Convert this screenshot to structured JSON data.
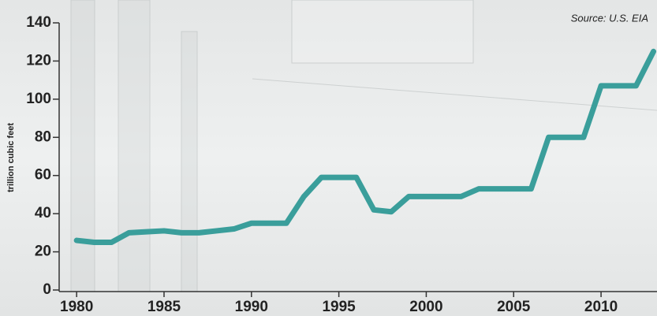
{
  "chart_data": {
    "type": "line",
    "source": "Source: U.S. EIA",
    "y_label": "trillion cubic feet",
    "x": [
      1980,
      1981,
      1982,
      1983,
      1984,
      1985,
      1986,
      1987,
      1988,
      1989,
      1990,
      1991,
      1992,
      1993,
      1994,
      1995,
      1996,
      1997,
      1998,
      1999,
      2000,
      2001,
      2002,
      2003,
      2004,
      2005,
      2006,
      2007,
      2008,
      2009,
      2010,
      2011,
      2012,
      2013
    ],
    "values": [
      26,
      25,
      25,
      30,
      30.5,
      31,
      30,
      30,
      31,
      32,
      35,
      35,
      35,
      49,
      59,
      59,
      59,
      42,
      41,
      49,
      49,
      49,
      49,
      53,
      53,
      53,
      53,
      80,
      80,
      80,
      107,
      107,
      107,
      125
    ],
    "color": "#3a9e9b",
    "xlim": [
      1979,
      2013.2
    ],
    "xticks": [
      1980,
      1985,
      1990,
      1995,
      2000,
      2005,
      2010
    ],
    "ylim": [
      0,
      140
    ],
    "yticks": [
      0,
      20,
      40,
      60,
      80,
      100,
      120,
      140
    ]
  }
}
